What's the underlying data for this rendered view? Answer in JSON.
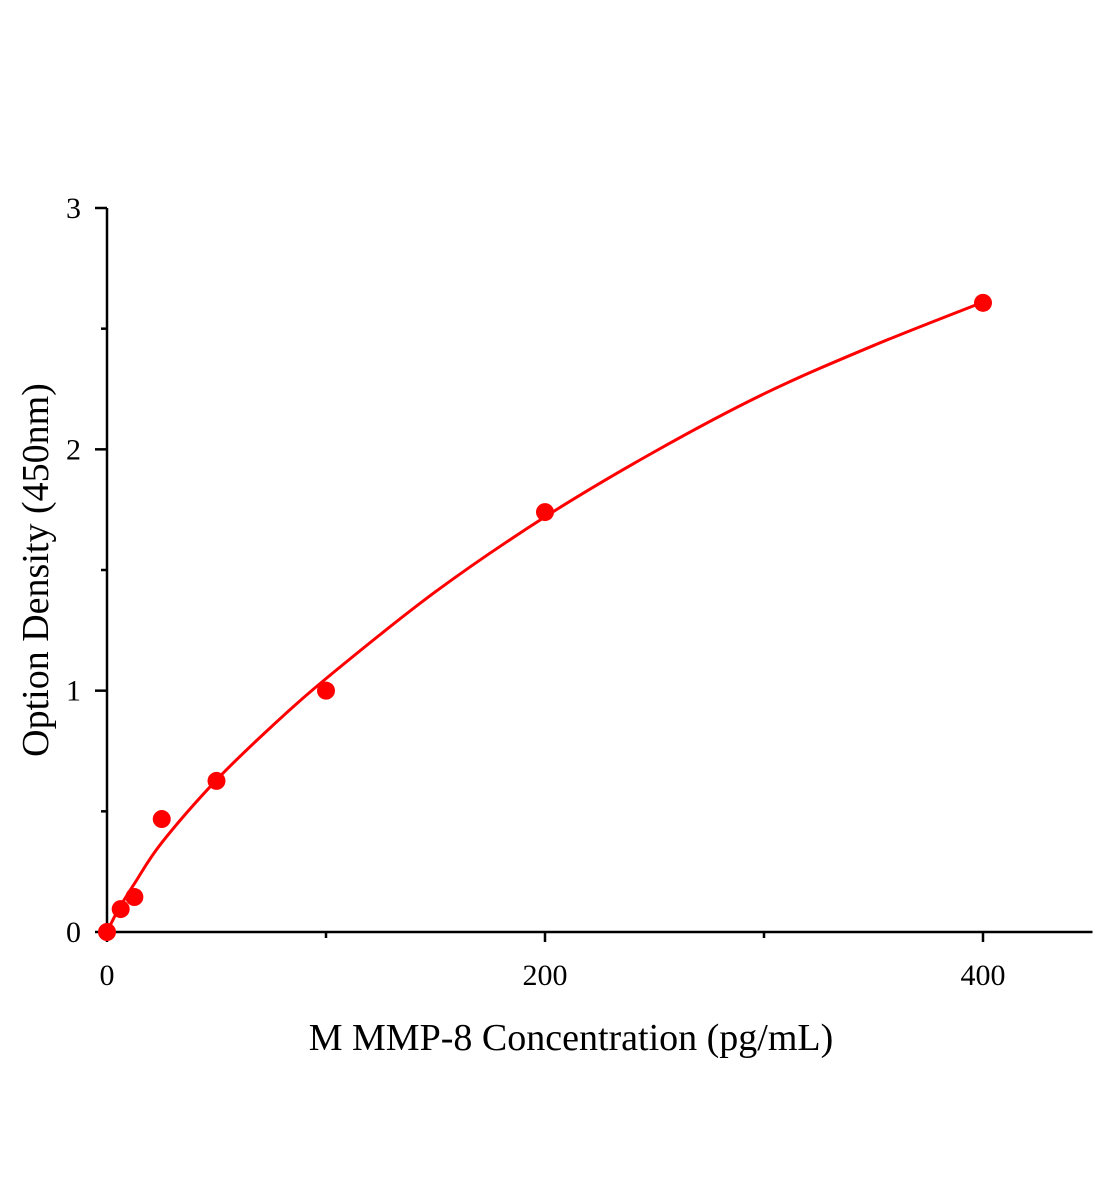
{
  "chart_data": {
    "type": "scatter",
    "title": "",
    "xlabel": "M  MMP-8 Concentration (pg/mL)",
    "ylabel": "Option Density (450nm)",
    "xlim": [
      0,
      450
    ],
    "ylim": [
      0,
      3
    ],
    "x_major_ticks": [
      0,
      200,
      400
    ],
    "x_tick_labels": [
      "0",
      "200",
      "400"
    ],
    "x_minor_ticks": [
      100,
      300
    ],
    "y_major_ticks": [
      0,
      1,
      2,
      3
    ],
    "y_tick_labels": [
      "0",
      "1",
      "2",
      "3"
    ],
    "y_minor_ticks": [
      0.5,
      1.5,
      2.5
    ],
    "grid": false,
    "color": "#ff0000",
    "points": [
      {
        "x": 0,
        "y": 0
      },
      {
        "x": 6.25,
        "y": 0.095
      },
      {
        "x": 12.5,
        "y": 0.145
      },
      {
        "x": 25,
        "y": 0.468
      },
      {
        "x": 50,
        "y": 0.626
      },
      {
        "x": 100,
        "y": 1.0
      },
      {
        "x": 200,
        "y": 1.74
      },
      {
        "x": 400,
        "y": 2.607
      }
    ],
    "fit_curve": [
      {
        "x": 0,
        "y": 0
      },
      {
        "x": 5,
        "y": 0.09
      },
      {
        "x": 12.5,
        "y": 0.2
      },
      {
        "x": 25,
        "y": 0.37
      },
      {
        "x": 50,
        "y": 0.63
      },
      {
        "x": 75,
        "y": 0.85
      },
      {
        "x": 100,
        "y": 1.05
      },
      {
        "x": 150,
        "y": 1.41
      },
      {
        "x": 200,
        "y": 1.72
      },
      {
        "x": 250,
        "y": 1.99
      },
      {
        "x": 300,
        "y": 2.23
      },
      {
        "x": 350,
        "y": 2.43
      },
      {
        "x": 400,
        "y": 2.61
      }
    ]
  }
}
